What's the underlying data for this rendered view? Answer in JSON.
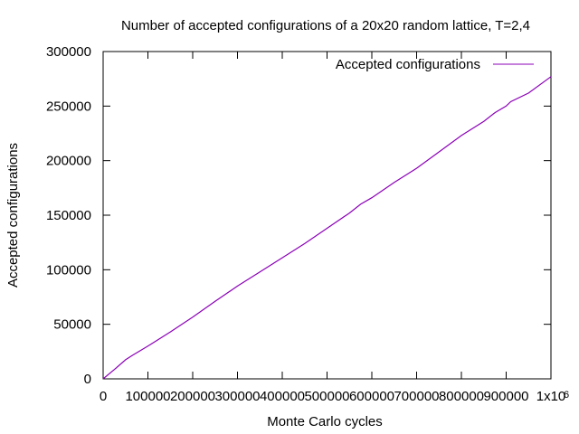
{
  "chart_data": {
    "type": "line",
    "title": "Number of accepted configurations of a 20x20 random lattice, T=2,4",
    "xlabel": "Monte Carlo cycles",
    "ylabel": "Accepted configurations",
    "xlim": [
      0,
      1000000
    ],
    "ylim": [
      0,
      300000
    ],
    "x_ticks": [
      0,
      100000,
      200000,
      300000,
      400000,
      500000,
      600000,
      700000,
      800000,
      900000,
      1000000
    ],
    "x_tick_labels": [
      "0",
      "100000",
      "200000",
      "300000",
      "400000",
      "500000",
      "600000",
      "700000",
      "800000",
      "900000",
      "1x10"
    ],
    "x_tick_exponent": "6",
    "y_ticks": [
      0,
      50000,
      100000,
      150000,
      200000,
      250000,
      300000
    ],
    "y_tick_labels": [
      "0",
      "50000",
      "100000",
      "150000",
      "200000",
      "250000",
      "300000"
    ],
    "grid": false,
    "legend_position": "top-right",
    "series": [
      {
        "name": "Accepted configurations",
        "color": "#8b00b8",
        "x": [
          0,
          25000,
          50000,
          65000,
          100000,
          150000,
          200000,
          250000,
          300000,
          350000,
          400000,
          450000,
          500000,
          550000,
          575000,
          600000,
          650000,
          700000,
          750000,
          800000,
          850000,
          875000,
          900000,
          910000,
          950000,
          1000000
        ],
        "y": [
          0,
          8500,
          17500,
          21500,
          30000,
          43000,
          56500,
          71000,
          85000,
          98000,
          111000,
          124000,
          138000,
          152000,
          160000,
          166000,
          180000,
          193000,
          208000,
          223000,
          236000,
          244000,
          250000,
          254000,
          262000,
          277000
        ]
      }
    ]
  }
}
